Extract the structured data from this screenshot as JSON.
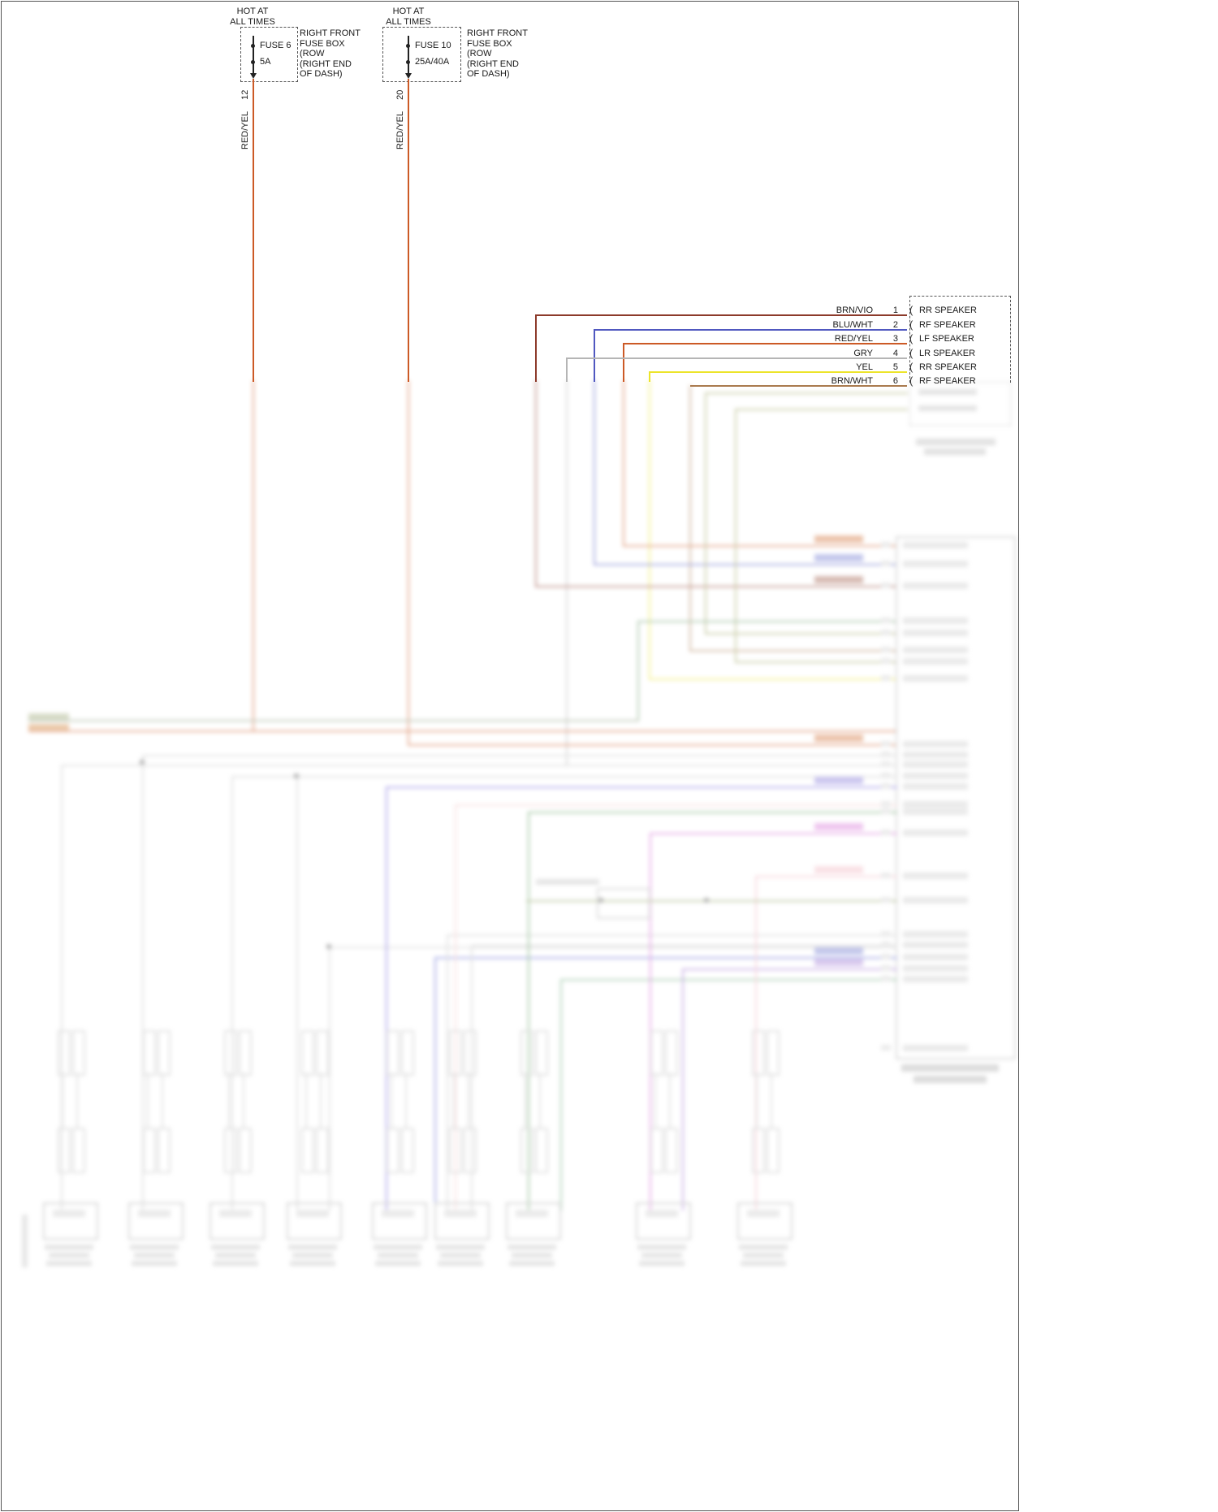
{
  "fuse_circuits": [
    {
      "hot_label": "HOT AT\nALL TIMES",
      "fuse_name": "FUSE 6",
      "fuse_rating": "5A",
      "box_callout": "RIGHT FRONT\nFUSE BOX\n(ROW\n(RIGHT END\nOF DASH)",
      "wire_color_label": "RED/YEL",
      "circuit_number": "12",
      "wire_hex": "#cc5a26"
    },
    {
      "hot_label": "HOT AT\nALL TIMES",
      "fuse_name": "FUSE 10",
      "fuse_rating": "25A/40A",
      "box_callout": "RIGHT FRONT\nFUSE BOX\n(ROW\n(RIGHT END\nOF DASH)",
      "wire_color_label": "RED/YEL",
      "circuit_number": "20",
      "wire_hex": "#cc5a26"
    }
  ],
  "speaker_connector": {
    "rows": [
      {
        "wire": "BRN/VIO",
        "pin": "1",
        "label": "RR SPEAKER",
        "hex": "#8c3a2a"
      },
      {
        "wire": "BLU/WHT",
        "pin": "2",
        "label": "RF SPEAKER",
        "hex": "#5058c0"
      },
      {
        "wire": "RED/YEL",
        "pin": "3",
        "label": "LF SPEAKER",
        "hex": "#cc5a26"
      },
      {
        "wire": "GRY",
        "pin": "4",
        "label": "LR SPEAKER",
        "hex": "#b5b5b5"
      },
      {
        "wire": "YEL",
        "pin": "5",
        "label": "RR SPEAKER",
        "hex": "#ece42a"
      },
      {
        "wire": "BRN/WHT",
        "pin": "6",
        "label": "RF SPEAKER",
        "hex": "#a97a4e"
      }
    ]
  }
}
